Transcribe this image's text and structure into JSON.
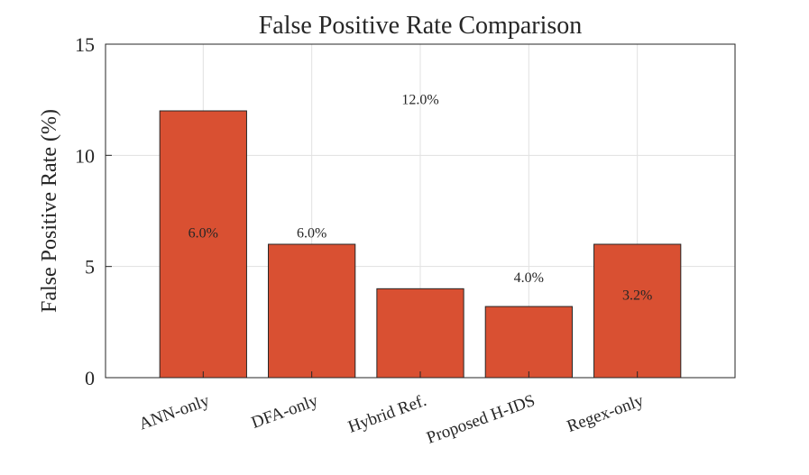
{
  "chart_data": {
    "type": "bar",
    "title": "False Positive Rate Comparison",
    "xlabel": "",
    "ylabel": "False Positive Rate (%)",
    "categories": [
      "ANN-only",
      "DFA-only",
      "Hybrid Ref.",
      "Proposed H-IDS",
      "Regex-only"
    ],
    "values": [
      12.0,
      6.0,
      4.0,
      3.2,
      6.0
    ],
    "ylim": [
      0,
      15
    ],
    "yticks": [
      0,
      5,
      10,
      15
    ],
    "grid": true,
    "bar_color": "#d95032",
    "data_labels": [
      {
        "text": "12.0%",
        "x": 3.0,
        "y": 12.3
      },
      {
        "text": "6.0%",
        "x": 1.0,
        "y": 6.3
      },
      {
        "text": "6.0%",
        "x": 2.0,
        "y": 6.3
      },
      {
        "text": "4.0%",
        "x": 4.0,
        "y": 4.3
      },
      {
        "text": "3.2%",
        "x": 5.0,
        "y": 3.5
      }
    ]
  }
}
